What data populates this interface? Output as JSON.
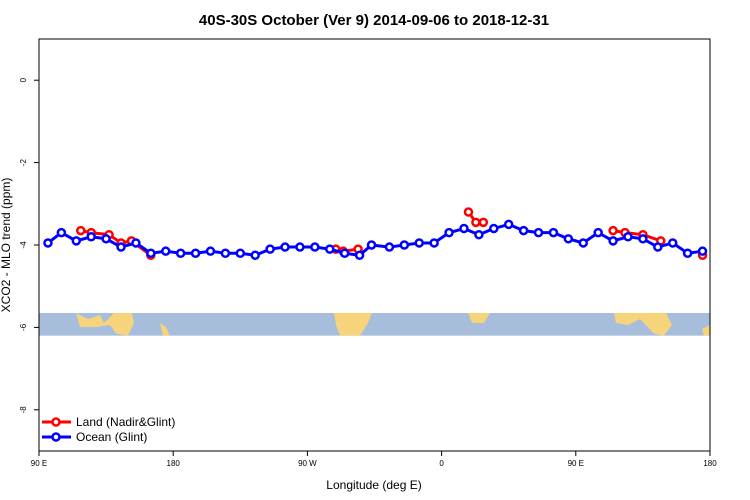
{
  "chart_data": {
    "type": "line",
    "title": "40S-30S October (Ver 9)   2014-09-06 to 2018-12-31",
    "xlabel": "Longitude (deg E)",
    "ylabel": "XCO2 - MLO trend (ppm)",
    "xlim": [
      90,
      540
    ],
    "ylim": [
      -9,
      1
    ],
    "x_ticks": [
      {
        "value": 90,
        "label": "90 E"
      },
      {
        "value": 180,
        "label": "180"
      },
      {
        "value": 270,
        "label": "90 W"
      },
      {
        "value": 360,
        "label": "0"
      },
      {
        "value": 450,
        "label": "90 E"
      },
      {
        "value": 540,
        "label": "180"
      }
    ],
    "y_ticks": [
      {
        "value": 0,
        "label": "0"
      },
      {
        "value": -2,
        "label": "-2"
      },
      {
        "value": -4,
        "label": "-4"
      },
      {
        "value": -6,
        "label": "-6"
      },
      {
        "value": -8,
        "label": "-8"
      }
    ],
    "land_band": {
      "y_top": -5.65,
      "y_bottom": -6.2,
      "ocean_color": "#a6bddb",
      "land_color": "#f6d47c"
    },
    "series": [
      {
        "name": "Land (Nadir&Glint)",
        "color": "#ff0000",
        "segments": [
          {
            "x": [
              118,
              125,
              137,
              145,
              152,
              165
            ],
            "y": [
              -3.65,
              -3.7,
              -3.75,
              -3.95,
              -3.9,
              -4.25
            ]
          },
          {
            "x": [
              289,
              294,
              304
            ],
            "y": [
              -4.1,
              -4.15,
              -4.1
            ]
          },
          {
            "x": [
              378,
              383,
              388
            ],
            "y": [
              -3.2,
              -3.45,
              -3.45
            ]
          },
          {
            "x": [
              475,
              483,
              495,
              507
            ],
            "y": [
              -3.65,
              -3.7,
              -3.75,
              -3.9
            ]
          },
          {
            "x": [
              535
            ],
            "y": [
              -4.25
            ]
          }
        ]
      },
      {
        "name": "Ocean (Glint)",
        "color": "#0000ff",
        "segments": [
          {
            "x": [
              96,
              105,
              115,
              125,
              135,
              145,
              155,
              165,
              175,
              185,
              195,
              205,
              215,
              225,
              235,
              245,
              255,
              265,
              275,
              285,
              295,
              305,
              313,
              325,
              335,
              345,
              355,
              365,
              375,
              385,
              395,
              405,
              415,
              425,
              435,
              445,
              455,
              465,
              475,
              485,
              495,
              505,
              515,
              525,
              535
            ],
            "y": [
              -3.95,
              -3.7,
              -3.9,
              -3.8,
              -3.85,
              -4.05,
              -3.95,
              -4.2,
              -4.15,
              -4.2,
              -4.2,
              -4.15,
              -4.2,
              -4.2,
              -4.25,
              -4.1,
              -4.05,
              -4.05,
              -4.05,
              -4.1,
              -4.2,
              -4.25,
              -4.0,
              -4.05,
              -4.0,
              -3.95,
              -3.95,
              -3.7,
              -3.6,
              -3.75,
              -3.6,
              -3.5,
              -3.65,
              -3.7,
              -3.7,
              -3.85,
              -3.95,
              -3.7,
              -3.9,
              -3.8,
              -3.85,
              -4.05,
              -3.95,
              -4.2,
              -4.15
            ]
          }
        ]
      }
    ],
    "legend": {
      "position": "bottom-left"
    }
  }
}
